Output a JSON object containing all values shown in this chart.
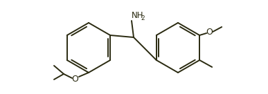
{
  "line_color": "#2a2a10",
  "bg_color": "#ffffff",
  "line_width": 1.4,
  "font_size_label": 8.5,
  "nh2_label": "NH",
  "nh2_sub": "2",
  "o_label": "O",
  "figsize": [
    3.87,
    1.36
  ],
  "dpi": 100
}
